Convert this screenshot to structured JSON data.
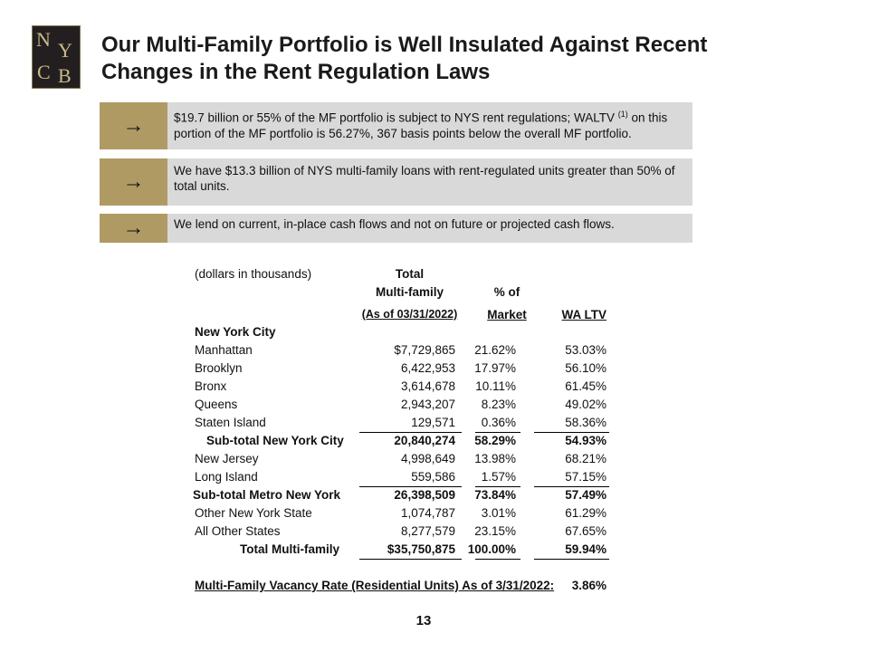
{
  "header": {
    "logo": [
      "N",
      "Y",
      "C",
      "B"
    ],
    "title": [
      "Our Multi-Family Portfolio is Well Insulated Against Recent",
      "Changes in the Rent Regulation Laws"
    ]
  },
  "bullets": [
    {
      "arrow": "→",
      "text": "$19.7 billion or 55% of the MF portfolio is subject to NYS rent regulations; WALTV",
      "sup": "(1)",
      "text_after": " on this portion of the MF portfolio is 56.27%, 367 basis points below the overall MF portfolio."
    },
    {
      "arrow": "→",
      "text": "We have $13.3 billion of NYS multi-family loans with rent-regulated units greater than 50% of total units."
    },
    {
      "arrow": "→",
      "text": "We lend on current, in-place cash flows and not on future or projected cash flows."
    }
  ],
  "table": {
    "unit_note": "(dollars in thousands)",
    "headers": {
      "total": [
        "Total",
        "Multi-family",
        "(As of 03/31/2022)"
      ],
      "pct": [
        "% of",
        "Market"
      ],
      "ltv": [
        "WA LTV"
      ]
    },
    "rows": [
      {
        "label": "New York City"
      },
      {
        "label": "Manhattan",
        "total": "$7,729,865",
        "pct": "21.62%",
        "ltv": "53.03%"
      },
      {
        "label": "Brooklyn",
        "total": "6,422,953",
        "pct": "17.97%",
        "ltv": "56.10%"
      },
      {
        "label": "Bronx",
        "total": "3,614,678",
        "pct": "10.11%",
        "ltv": "61.45%"
      },
      {
        "label": "Queens",
        "total": "2,943,207",
        "pct": "8.23%",
        "ltv": "49.02%"
      },
      {
        "label": "Staten Island",
        "total": "129,571",
        "pct": "0.36%",
        "ltv": "58.36%"
      },
      {
        "label": "Sub-total New York City",
        "total": "20,840,274",
        "pct": "58.29%",
        "ltv": "54.93%"
      },
      {
        "label": "New Jersey",
        "total": "4,998,649",
        "pct": "13.98%",
        "ltv": "68.21%"
      },
      {
        "label": "Long Island",
        "total": "559,586",
        "pct": "1.57%",
        "ltv": "57.15%"
      },
      {
        "label": "Sub-total Metro New York",
        "total": "26,398,509",
        "pct": "73.84%",
        "ltv": "57.49%"
      },
      {
        "label": "Other New York State",
        "total": "1,074,787",
        "pct": "3.01%",
        "ltv": "61.29%"
      },
      {
        "label": "All Other States",
        "total": "8,277,579",
        "pct": "23.15%",
        "ltv": "67.65%"
      },
      {
        "label": "Total Multi-family",
        "total": "$35,750,875",
        "pct": "100.00%",
        "ltv": "59.94%"
      }
    ],
    "vacancy": {
      "label": "Multi-Family Vacancy Rate (Residential Units) As of 3/31/2022:",
      "value": "3.86%"
    }
  },
  "page_number": "13"
}
